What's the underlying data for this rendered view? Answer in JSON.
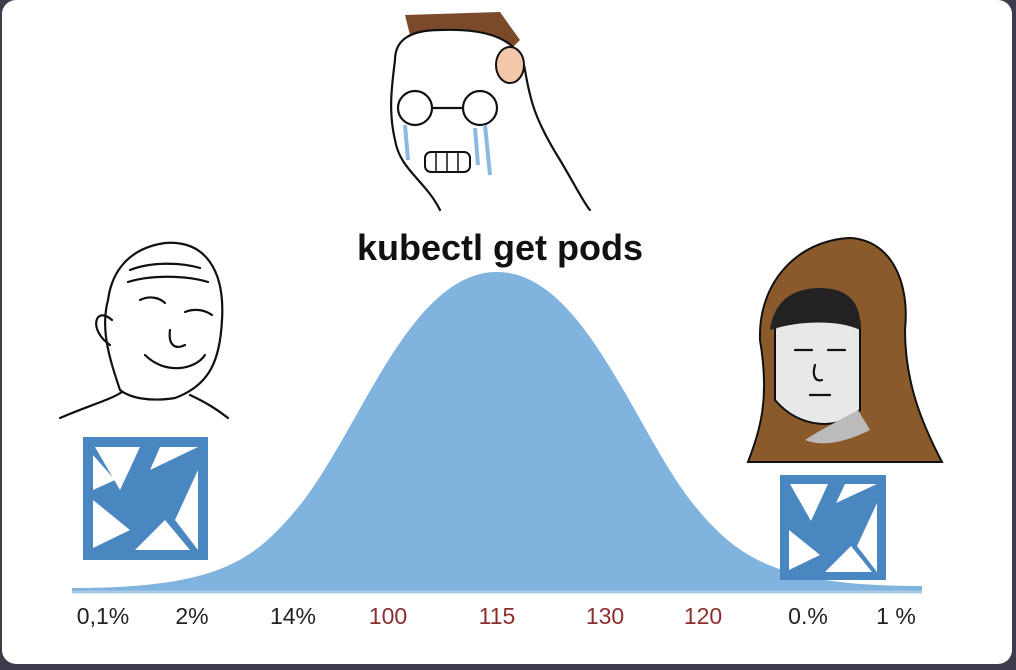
{
  "meme": {
    "title": "kubectl get pods",
    "labels": [
      "0,1%",
      "2%",
      "14%",
      "100",
      "115",
      "130",
      "120",
      "0.%",
      "1 %"
    ],
    "label_colors": [
      "#222222",
      "#222222",
      "#222222",
      "#8b2f2f",
      "#8b2f2f",
      "#8b2f2f",
      "#8b2f2f",
      "#222222",
      "#222222"
    ]
  }
}
